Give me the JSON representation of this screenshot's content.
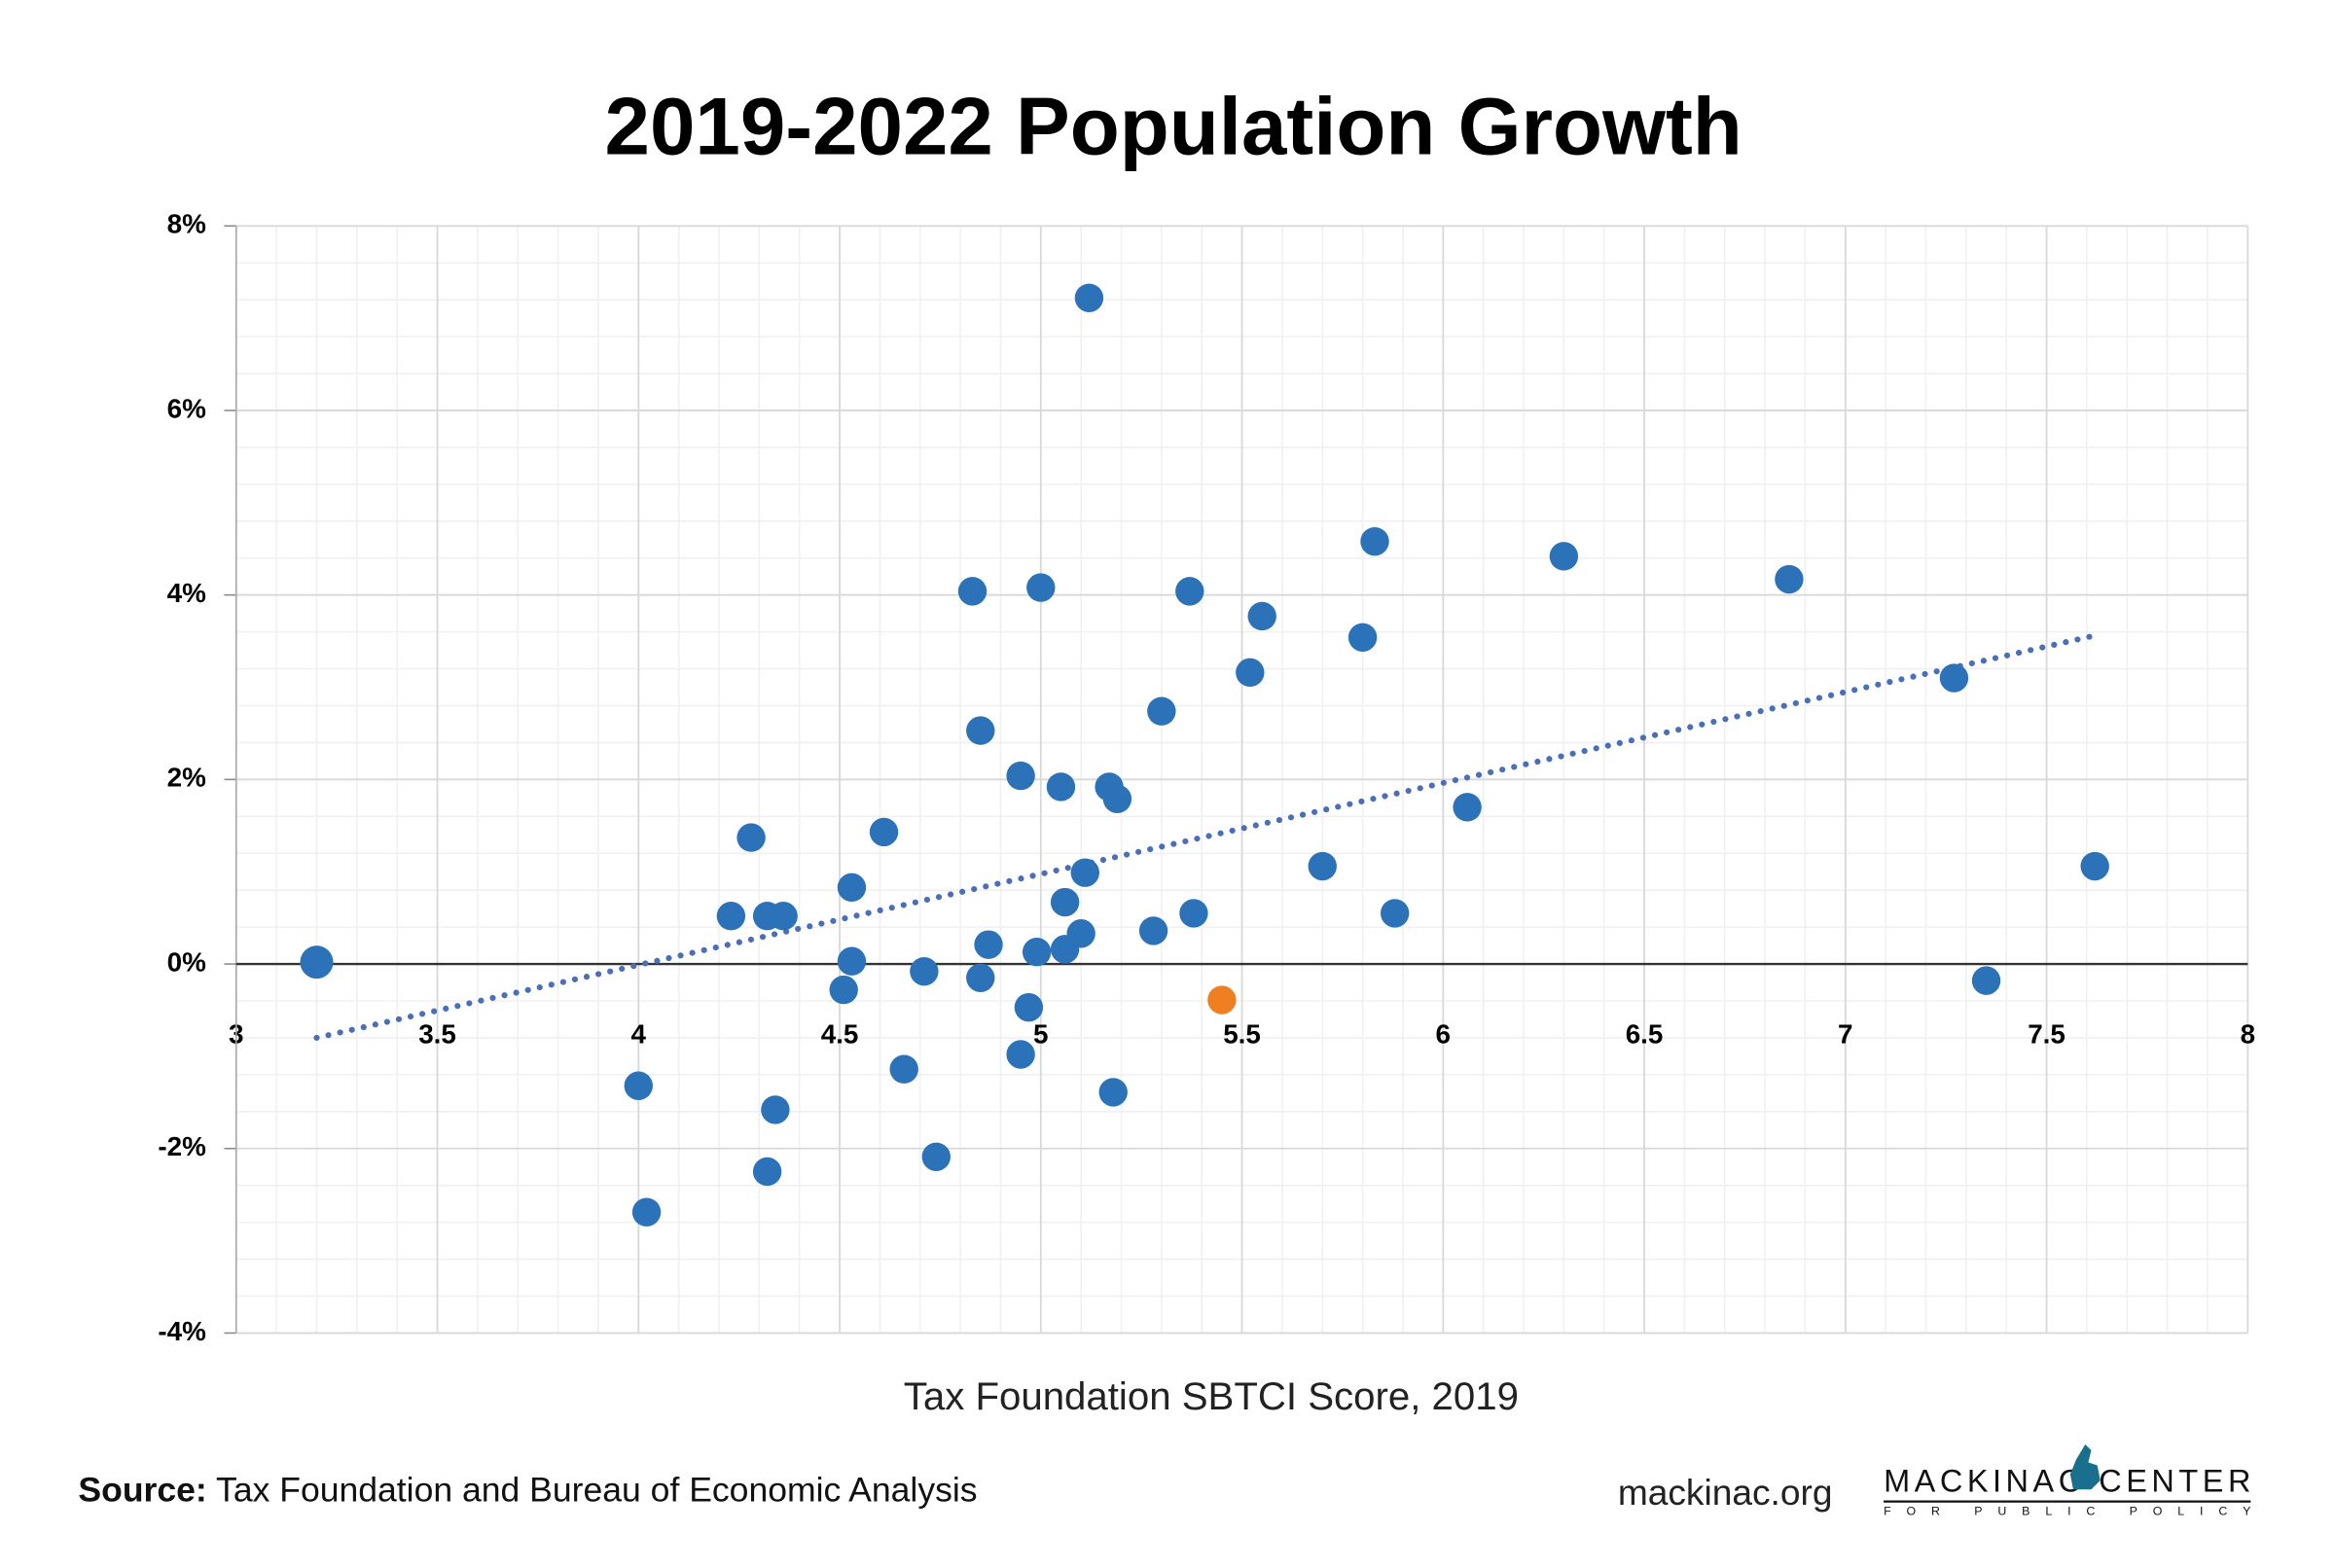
{
  "chart_data": {
    "type": "scatter",
    "title": "2019-2022 Population Growth",
    "xlabel": "Tax Foundation SBTCI Score, 2019",
    "xlim": [
      3,
      8
    ],
    "xticks": [
      3,
      3.5,
      4,
      4.5,
      5,
      5.5,
      6,
      6.5,
      7,
      7.5,
      8
    ],
    "ylim": [
      -4,
      8
    ],
    "yticks": [
      {
        "value": -4,
        "label": "-4%"
      },
      {
        "value": -2,
        "label": "-2%"
      },
      {
        "value": 0,
        "label": "0%"
      },
      {
        "value": 2,
        "label": "2%"
      },
      {
        "value": 4,
        "label": "4%"
      },
      {
        "value": 6,
        "label": "6%"
      },
      {
        "value": 8,
        "label": "8%"
      }
    ],
    "grid": true,
    "minor_grid": {
      "x_step": 0.1,
      "y_step": 0.4
    },
    "color": "#2b72b8",
    "highlight": {
      "index": 38,
      "color": "#f07f22"
    },
    "x": [
      3.2,
      4.0,
      4.02,
      4.23,
      4.28,
      4.32,
      4.36,
      4.34,
      4.32,
      4.53,
      4.53,
      4.51,
      4.61,
      4.66,
      4.71,
      4.74,
      4.83,
      4.85,
      4.85,
      4.87,
      4.95,
      4.95,
      4.97,
      4.99,
      5.0,
      5.05,
      5.06,
      5.06,
      5.1,
      5.11,
      5.12,
      5.17,
      5.19,
      5.18,
      5.28,
      5.3,
      5.37,
      5.38,
      5.45,
      5.52,
      5.55,
      5.7,
      5.8,
      5.83,
      5.88,
      6.06,
      6.3,
      6.86,
      7.27,
      7.35,
      7.62
    ],
    "values": [
      0.02,
      -1.32,
      -2.69,
      0.52,
      1.37,
      0.52,
      0.52,
      -1.58,
      -2.25,
      0.83,
      0.03,
      -0.28,
      1.43,
      -1.14,
      -0.08,
      -2.09,
      4.04,
      2.53,
      -0.15,
      0.21,
      2.04,
      -0.98,
      -0.47,
      0.13,
      4.08,
      1.92,
      0.67,
      0.16,
      0.33,
      0.99,
      7.22,
      1.92,
      1.79,
      -1.39,
      0.36,
      2.74,
      4.04,
      0.55,
      -0.39,
      3.16,
      3.77,
      1.06,
      3.54,
      4.58,
      0.55,
      1.7,
      4.42,
      4.17,
      3.1,
      -0.18,
      1.06
    ],
    "trendline": {
      "x": [
        3.2,
        7.62
      ],
      "y": [
        -0.8,
        3.56
      ],
      "color": "#4a6fb8",
      "style": "dotted"
    }
  },
  "footer": {
    "source_label": "Source:",
    "source": "Tax Foundation and Bureau of Economic Analysis",
    "website": "mackinac.org",
    "logo_name": "MACKINAC CENTER",
    "logo_tagline": "FOR PUBLIC POLICY"
  }
}
